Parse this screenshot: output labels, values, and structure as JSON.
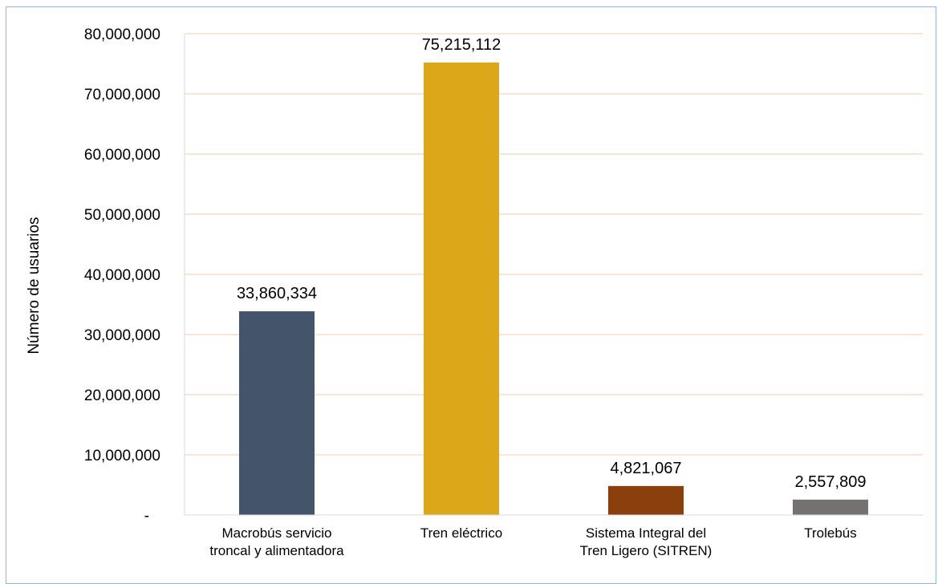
{
  "chart_data": {
    "type": "bar",
    "categories": [
      [
        "Macrobús servicio",
        "troncal y alimentadora"
      ],
      [
        "Tren eléctrico"
      ],
      [
        "Sistema Integral del",
        "Tren Ligero (SITREN)"
      ],
      [
        "Trolebús"
      ]
    ],
    "values": [
      33860334,
      75215112,
      4821067,
      2557809
    ],
    "data_labels": [
      "33,860,334",
      "75,215,112",
      "4,821,067",
      "2,557,809"
    ],
    "colors": [
      "#44546a",
      "#dca81a",
      "#8b3f0c",
      "#767171"
    ],
    "title": "",
    "xlabel": "",
    "ylabel": "Número de usuarios",
    "ylim": [
      0,
      80000000
    ],
    "yticks": [
      0,
      10000000,
      20000000,
      30000000,
      40000000,
      50000000,
      60000000,
      70000000,
      80000000
    ],
    "ytick_labels": [
      "-",
      "10,000,000",
      "20,000,000",
      "30,000,000",
      "40,000,000",
      "50,000,000",
      "60,000,000",
      "70,000,000",
      "80,000,000"
    ],
    "grid": true,
    "grid_color": "#f8cbad",
    "legend": "none"
  }
}
